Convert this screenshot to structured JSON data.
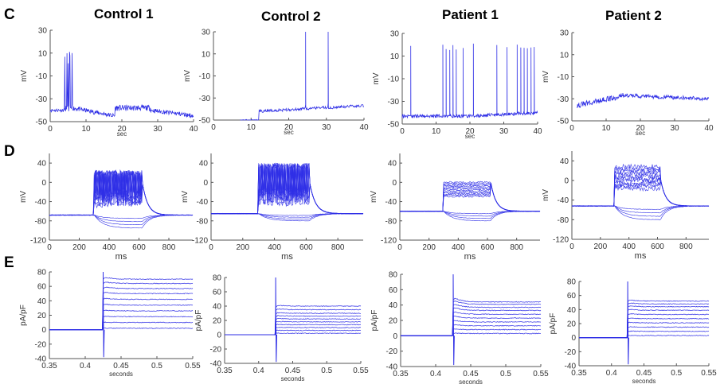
{
  "figure": {
    "row_letters": [
      "C",
      "D",
      "E"
    ],
    "column_titles": [
      "Control 1",
      "Control 2",
      "Patient 1",
      "Patient 2"
    ]
  },
  "colors": {
    "trace": "#2f2fe6",
    "axis": "#555555"
  },
  "chart_data": [
    {
      "id": "C1",
      "row": "C",
      "col": 0,
      "type": "line",
      "xlabel": "sec",
      "ylabel": "mV",
      "xlim": [
        0,
        40
      ],
      "ylim": [
        -50,
        30
      ],
      "xticks": [
        "0",
        "10",
        "20",
        "30",
        "40"
      ],
      "yticks": [
        "-50",
        "-30",
        "-10",
        "10",
        "30"
      ],
      "description_values": {
        "baseline_start": -40,
        "burst": {
          "t": [
            4,
            6
          ],
          "peak": 5
        },
        "mid_level": [
          -38,
          -45
        ],
        "late_level": -43
      }
    },
    {
      "id": "C2",
      "row": "C",
      "col": 1,
      "type": "line",
      "xlabel": "sec",
      "ylabel": "mV",
      "xlim": [
        0,
        40
      ],
      "ylim": [
        -50,
        30
      ],
      "xticks": [
        "0",
        "10",
        "20",
        "30",
        "40"
      ],
      "yticks": [
        "-50",
        "-30",
        "-10",
        "10",
        "30"
      ],
      "description_values": {
        "start_t": 7,
        "level_early": -50,
        "level_late": -38,
        "spikes": [
          {
            "t": 24.5,
            "peak": 30
          },
          {
            "t": 30.5,
            "peak": 30
          }
        ]
      }
    },
    {
      "id": "C3",
      "row": "C",
      "col": 2,
      "type": "line",
      "xlabel": "sec",
      "ylabel": "mV",
      "xlim": [
        0,
        40
      ],
      "ylim": [
        -50,
        30
      ],
      "xticks": [
        "0",
        "10",
        "20",
        "30",
        "40"
      ],
      "yticks": [
        "-50",
        "-30",
        "-10",
        "10",
        "30"
      ],
      "description_values": {
        "baseline": -43,
        "spike_times": [
          2.5,
          12,
          13,
          14,
          15,
          16,
          18,
          21,
          28,
          31,
          34,
          35,
          36,
          37,
          38,
          39
        ]
      }
    },
    {
      "id": "C4",
      "row": "C",
      "col": 3,
      "type": "line",
      "xlabel": "sec",
      "ylabel": "mV",
      "xlim": [
        0,
        40
      ],
      "ylim": [
        -50,
        30
      ],
      "xticks": [
        "0",
        "10",
        "20",
        "30",
        "40"
      ],
      "yticks": [
        "-50",
        "-30",
        "-10",
        "10",
        "30"
      ],
      "description_values": {
        "level_start": -36,
        "level_mid": -27,
        "level_end": -30
      }
    },
    {
      "id": "D1",
      "row": "D",
      "col": 0,
      "type": "line",
      "xlabel": "ms",
      "ylabel": "mV",
      "xlim": [
        0,
        960
      ],
      "ylim": [
        -120,
        60
      ],
      "xticks": [
        "0",
        "200",
        "400",
        "600",
        "800"
      ],
      "yticks": [
        "-120",
        "-80",
        "-40",
        "0",
        "40"
      ],
      "description_values": {
        "rest": -68,
        "step": [
          300,
          620
        ],
        "spike_peak": 25,
        "hyperpol_min": -95
      }
    },
    {
      "id": "D2",
      "row": "D",
      "col": 1,
      "type": "line",
      "xlabel": "ms",
      "ylabel": "mV",
      "xlim": [
        0,
        960
      ],
      "ylim": [
        -120,
        60
      ],
      "xticks": [
        "0",
        "200",
        "400",
        "600",
        "800"
      ],
      "yticks": [
        "-120",
        "-80",
        "-40",
        "0",
        "40"
      ],
      "description_values": {
        "rest": -65,
        "step": [
          300,
          620
        ],
        "spike_peak": 40,
        "hyperpol_min": -80
      }
    },
    {
      "id": "D3",
      "row": "D",
      "col": 2,
      "type": "line",
      "xlabel": "ms",
      "ylabel": "mV",
      "xlim": [
        0,
        960
      ],
      "ylim": [
        -120,
        60
      ],
      "xticks": [
        "0",
        "200",
        "400",
        "600",
        "800"
      ],
      "yticks": [
        "-120",
        "-80",
        "-40",
        "0",
        "40"
      ],
      "description_values": {
        "rest": -60,
        "step": [
          300,
          620
        ],
        "plateau": 15,
        "hyperpol_min": -80
      }
    },
    {
      "id": "D4",
      "row": "D",
      "col": 3,
      "type": "line",
      "xlabel": "ms",
      "ylabel": "mV",
      "xlim": [
        0,
        960
      ],
      "ylim": [
        -120,
        60
      ],
      "xticks": [
        "0",
        "200",
        "400",
        "600",
        "800"
      ],
      "yticks": [
        "-120",
        "-80",
        "-40",
        "0",
        "40"
      ],
      "description_values": {
        "rest": -52,
        "step": [
          300,
          620
        ],
        "top": 33,
        "hyperpol_min": -80
      }
    },
    {
      "id": "E1",
      "row": "E",
      "col": 0,
      "type": "line",
      "xlabel": "seconds",
      "ylabel": "pA/pF",
      "xlim": [
        0.35,
        0.55
      ],
      "ylim": [
        -40,
        80
      ],
      "xticks": [
        "0.35",
        "0.4",
        "0.45",
        "0.5",
        "0.55"
      ],
      "yticks": [
        "-40",
        "-20",
        "0",
        "20",
        "40",
        "60",
        "80"
      ],
      "description_values": {
        "step_t": 0.425,
        "steady_levels": [
          2,
          10,
          18,
          26,
          34,
          42,
          50,
          57,
          64,
          70
        ]
      }
    },
    {
      "id": "E2",
      "row": "E",
      "col": 1,
      "type": "line",
      "xlabel": "seconds",
      "ylabel": "pA/pF",
      "xlim": [
        0.35,
        0.55
      ],
      "ylim": [
        -40,
        80
      ],
      "xticks": [
        "0.35",
        "0.4",
        "0.45",
        "0.5",
        "0.55"
      ],
      "yticks": [
        "-40",
        "-20",
        "0",
        "20",
        "40",
        "60",
        "80"
      ],
      "description_values": {
        "step_t": 0.425,
        "steady_levels": [
          2,
          6,
          10,
          14,
          18,
          22,
          26,
          30,
          35,
          40
        ]
      }
    },
    {
      "id": "E3",
      "row": "E",
      "col": 2,
      "type": "line",
      "xlabel": "seconds",
      "ylabel": "pA/pF",
      "xlim": [
        0.35,
        0.55
      ],
      "ylim": [
        -40,
        80
      ],
      "xticks": [
        "0.35",
        "0.4",
        "0.45",
        "0.5",
        "0.55"
      ],
      "yticks": [
        "-40",
        "-20",
        "0",
        "20",
        "40",
        "60",
        "80"
      ],
      "description_values": {
        "step_t": 0.425,
        "steady_levels": [
          3,
          8,
          13,
          18,
          23,
          28,
          33,
          37,
          41,
          44
        ]
      }
    },
    {
      "id": "E4",
      "row": "E",
      "col": 3,
      "type": "line",
      "xlabel": "seconds",
      "ylabel": "pA/pF",
      "xlim": [
        0.35,
        0.55
      ],
      "ylim": [
        -40,
        80
      ],
      "xticks": [
        "0.35",
        "0.4",
        "0.45",
        "0.5",
        "0.55"
      ],
      "yticks": [
        "-40",
        "-20",
        "0",
        "20",
        "40",
        "60",
        "80"
      ],
      "description_values": {
        "step_t": 0.425,
        "steady_levels": [
          3,
          9,
          15,
          21,
          27,
          33,
          39,
          44,
          48,
          52
        ]
      }
    }
  ]
}
